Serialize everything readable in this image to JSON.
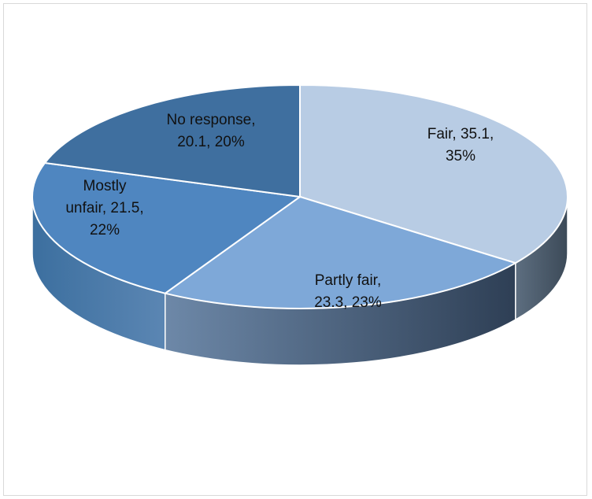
{
  "chart_data": {
    "type": "pie",
    "style": "3d",
    "title": "",
    "slices": [
      {
        "name": "Fair",
        "value": 35.1,
        "percent": "35%",
        "label_lines": [
          "Fair, 35.1,",
          "35%"
        ],
        "color": "#b8cce4"
      },
      {
        "name": "Partly fair",
        "value": 23.3,
        "percent": "23%",
        "label_lines": [
          "Partly fair,",
          "23.3, 23%"
        ],
        "color": "#7ea8d8"
      },
      {
        "name": "Mostly unfair",
        "value": 21.5,
        "percent": "22%",
        "label_lines": [
          "Mostly",
          "unfair, 21.5,",
          "22%"
        ],
        "color": "#4f86c0"
      },
      {
        "name": "No response",
        "value": 20.1,
        "percent": "20%",
        "label_lines": [
          "No response,",
          "20.1, 20%"
        ],
        "color": "#3f6f9f"
      }
    ],
    "legend": "none",
    "grid": false
  }
}
